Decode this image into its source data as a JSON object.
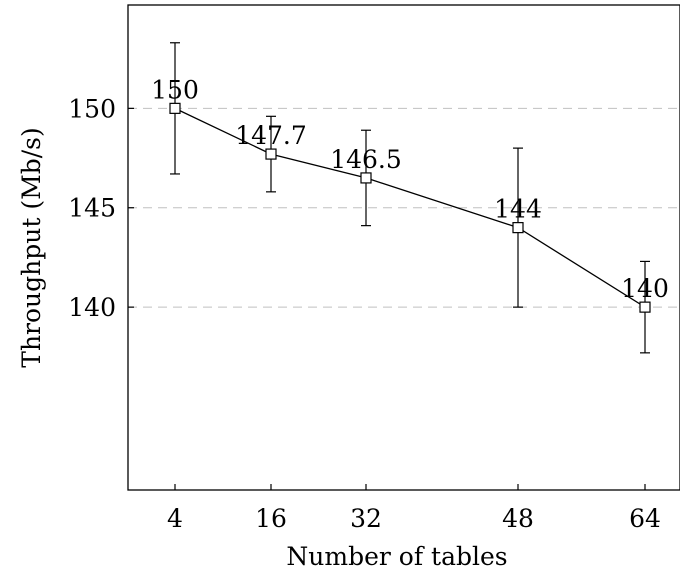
{
  "chart_data": {
    "type": "line",
    "title": "",
    "xlabel": "Number of tables",
    "ylabel": "Throughput (Mb/s)",
    "categories": [
      "4",
      "16",
      "32",
      "48",
      "64"
    ],
    "ylim": [
      130.8,
      155.2
    ],
    "y_ticks": [
      140,
      145,
      150
    ],
    "grid": "horizontal dashed",
    "legend": "none",
    "series": [
      {
        "values": [
          150,
          147.7,
          146.5,
          144,
          140
        ],
        "error_low": [
          146.7,
          145.8,
          144.1,
          140.0,
          137.7
        ],
        "error_high": [
          153.3,
          149.6,
          148.9,
          148.0,
          142.3
        ],
        "data_labels": [
          "150",
          "147.7",
          "146.5",
          "144",
          "140"
        ],
        "marker": "square",
        "color": "#000000"
      }
    ],
    "colors": {
      "line": "#000000",
      "grid": "#c0c0c0"
    }
  }
}
